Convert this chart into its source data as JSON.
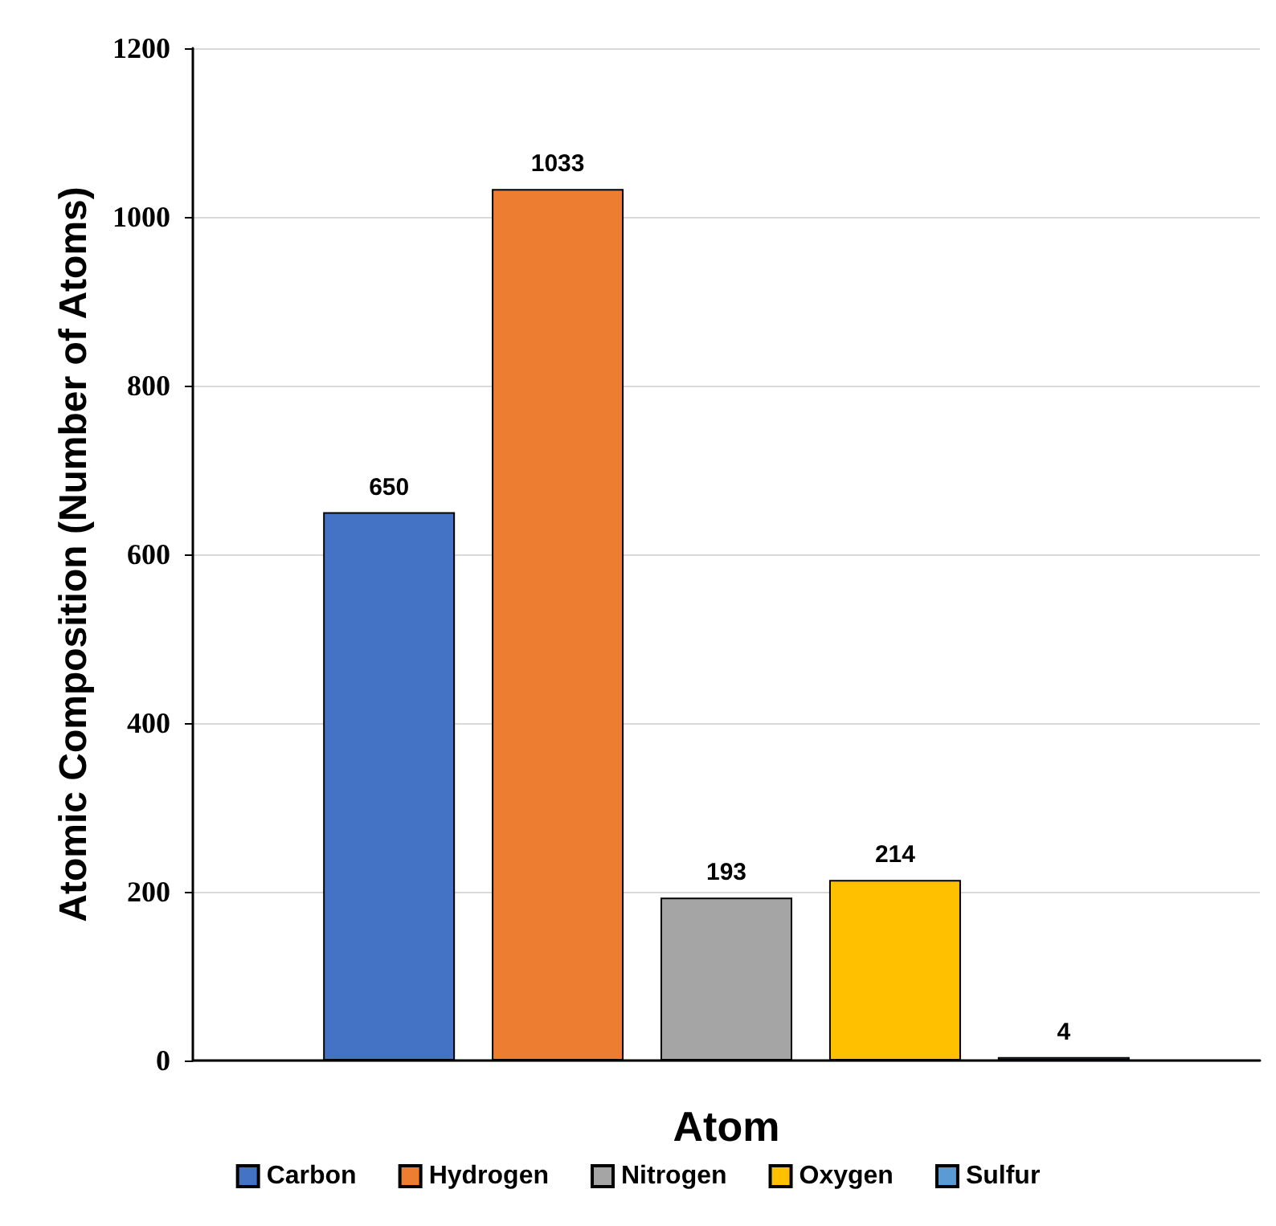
{
  "chart_data": {
    "type": "bar",
    "xlabel": "Atom",
    "ylabel": "Atomic Composition (Number of Atoms)",
    "categories": [
      null
    ],
    "series": [
      {
        "name": "Carbon",
        "color": "#4472c4",
        "values": [
          650
        ]
      },
      {
        "name": "Hydrogen",
        "color": "#ed7d31",
        "values": [
          1033
        ]
      },
      {
        "name": "Nitrogen",
        "color": "#a5a5a5",
        "values": [
          193
        ]
      },
      {
        "name": "Oxygen",
        "color": "#ffc000",
        "values": [
          214
        ]
      },
      {
        "name": "Sulfur",
        "color": "#5b9bd5",
        "values": [
          4
        ]
      }
    ],
    "ylim": [
      0,
      1200
    ],
    "yticks": [
      0,
      200,
      400,
      600,
      800,
      1000,
      1200
    ],
    "grid": "y",
    "legend": "bottom",
    "data_labels": true
  }
}
